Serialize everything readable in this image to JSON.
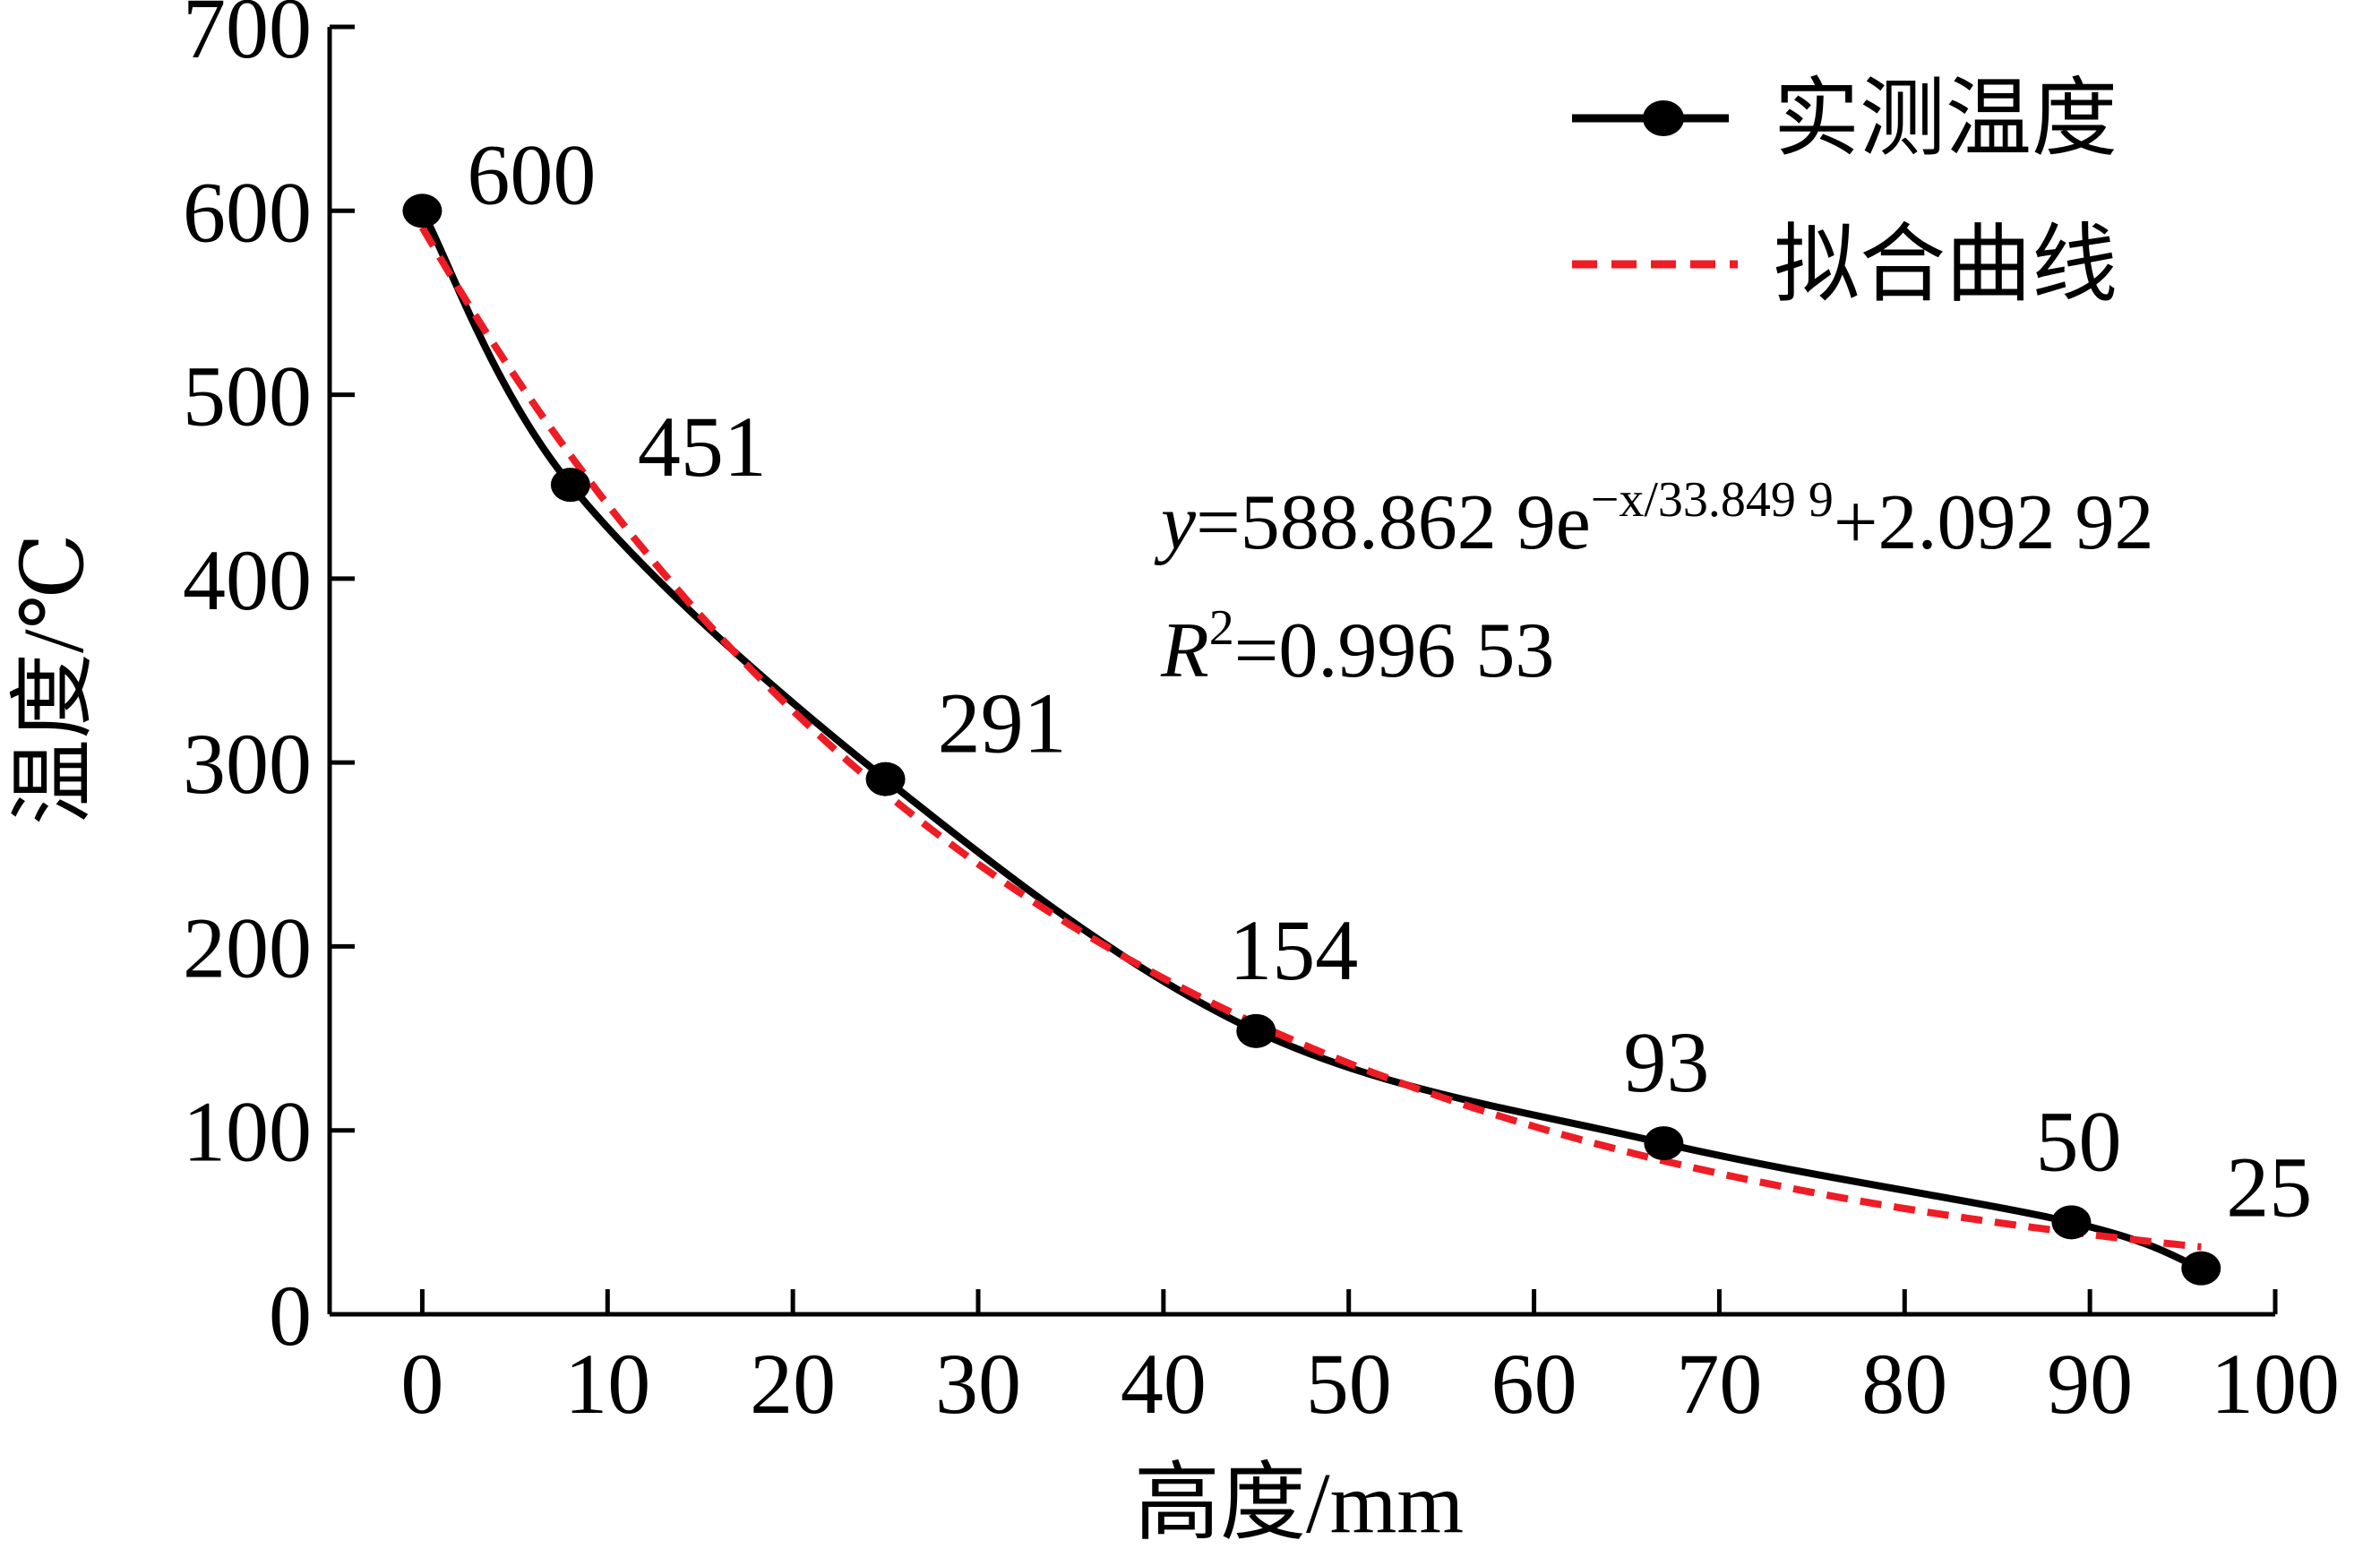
{
  "chart_data": {
    "type": "line",
    "xlabel": "高度/mm",
    "ylabel": "温度/℃",
    "xlim": [
      -5,
      100
    ],
    "ylim": [
      0,
      700
    ],
    "x_ticks": [
      0,
      10,
      20,
      30,
      40,
      50,
      60,
      70,
      80,
      90,
      100
    ],
    "y_ticks": [
      0,
      100,
      200,
      300,
      400,
      500,
      600,
      700
    ],
    "grid": false,
    "legend_position": "top-right",
    "series": [
      {
        "name": "实测温度",
        "style": "solid-with-markers",
        "color": "#000000",
        "x": [
          0,
          8,
          25,
          45,
          67,
          89,
          96
        ],
        "y": [
          600,
          451,
          291,
          154,
          93,
          50,
          25
        ],
        "data_labels": [
          "600",
          "451",
          "291",
          "154",
          "93",
          "50",
          "25"
        ]
      },
      {
        "name": "拟合曲线",
        "style": "dashed",
        "color": "#ee1c25",
        "equation": {
          "a": 588.8629,
          "t": 33.8499,
          "c": 2.09292
        }
      }
    ],
    "annotations": {
      "eq_y": "y",
      "eq_main": "=588.862 9e",
      "eq_exp": "−x/33.849 9",
      "eq_tail": "+2.092 92",
      "r2_r": "R",
      "r2_sup": "2",
      "r2_value": "=0.996 53"
    }
  }
}
